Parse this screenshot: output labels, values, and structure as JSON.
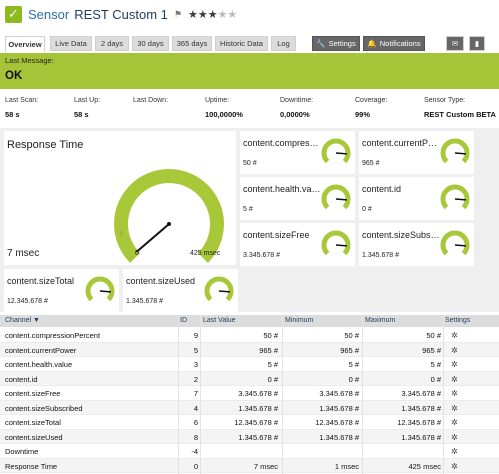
{
  "header": {
    "title_prefix": "Sensor",
    "title_name": "REST Custom 1",
    "flag_icon": "⚑",
    "stars_filled": "★★★",
    "stars_empty": "★★"
  },
  "tabs": [
    {
      "label": "Overview"
    },
    {
      "label": "Live Data"
    },
    {
      "label": "2 days"
    },
    {
      "label": "30 days"
    },
    {
      "label": "365 days"
    },
    {
      "label": "Historic Data"
    },
    {
      "label": "Log"
    },
    {
      "label": "Settings"
    },
    {
      "label": "Notifications"
    }
  ],
  "message": {
    "label": "Last Message:",
    "value": "OK"
  },
  "stats": [
    {
      "label": "Last Scan:",
      "value": "58 s"
    },
    {
      "label": "Last Up:",
      "value": "58 s"
    },
    {
      "label": "Last Down:",
      "value": ""
    },
    {
      "label": "Uptime:",
      "value": "100,0000%"
    },
    {
      "label": "Downtime:",
      "value": "0,0000%"
    },
    {
      "label": "Coverage:",
      "value": "99%"
    },
    {
      "label": "Sensor Type:",
      "value": "REST Custom BETA"
    }
  ],
  "gauges": {
    "primary": {
      "title": "Response Time",
      "value": "7 msec",
      "min": "0",
      "max": "425 msec",
      "low_mark": "9",
      "fraction": 0.016
    },
    "tiles": [
      {
        "title": "content.compres…",
        "value": "50 #",
        "fraction": 0.85
      },
      {
        "title": "content.currentP…",
        "value": "965 #",
        "fraction": 0.85
      },
      {
        "title": "content.health.va…",
        "value": "5 #",
        "fraction": 0.85
      },
      {
        "title": "content.id",
        "value": "0 #",
        "fraction": 0.85
      },
      {
        "title": "content.sizeFree",
        "value": "3.345.678 #",
        "fraction": 0.85
      },
      {
        "title": "content.sizeSubs…",
        "value": "1.345.678 #",
        "fraction": 0.85
      },
      {
        "title": "content.sizeTotal",
        "value": "12.345.678 #",
        "fraction": 0.85
      },
      {
        "title": "content.sizeUsed",
        "value": "1.345.678 #",
        "fraction": 0.85
      }
    ]
  },
  "table": {
    "headers": {
      "channel": "Channel ▼",
      "id": "ID",
      "last": "Last Value",
      "min": "Minimum",
      "max": "Maximum",
      "settings": "Settings"
    },
    "rows": [
      {
        "channel": "content.compressionPercent",
        "id": "9",
        "last": "50 #",
        "min": "50 #",
        "max": "50 #"
      },
      {
        "channel": "content.currentPower",
        "id": "5",
        "last": "965 #",
        "min": "965 #",
        "max": "965 #"
      },
      {
        "channel": "content.health.value",
        "id": "3",
        "last": "5 #",
        "min": "5 #",
        "max": "5 #"
      },
      {
        "channel": "content.id",
        "id": "2",
        "last": "0 #",
        "min": "0 #",
        "max": "0 #"
      },
      {
        "channel": "content.sizeFree",
        "id": "7",
        "last": "3.345.678 #",
        "min": "3.345.678 #",
        "max": "3.345.678 #"
      },
      {
        "channel": "content.sizeSubscribed",
        "id": "4",
        "last": "1.345.678 #",
        "min": "1.345.678 #",
        "max": "1.345.678 #"
      },
      {
        "channel": "content.sizeTotal",
        "id": "6",
        "last": "12.345.678 #",
        "min": "12.345.678 #",
        "max": "12.345.678 #"
      },
      {
        "channel": "content.sizeUsed",
        "id": "8",
        "last": "1.345.678 #",
        "min": "1.345.678 #",
        "max": "1.345.678 #"
      },
      {
        "channel": "Downtime",
        "id": "-4",
        "last": "",
        "min": "",
        "max": ""
      },
      {
        "channel": "Response Time",
        "id": "0",
        "last": "7 msec",
        "min": "1 msec",
        "max": "425 msec"
      }
    ]
  },
  "colors": {
    "accent_green": "#a7c438",
    "gauge_green": "#a8c83a",
    "link_blue": "#2a6fa8"
  }
}
